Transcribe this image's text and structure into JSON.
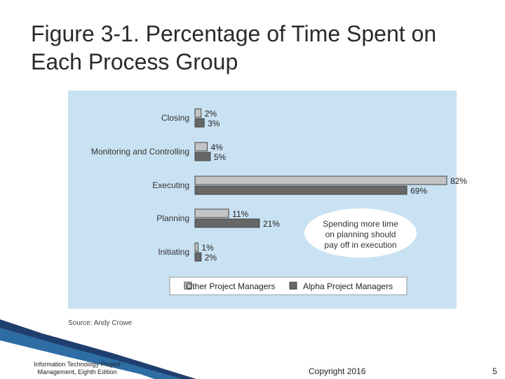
{
  "slide": {
    "title": "Figure 3-1. Percentage of Time Spent on Each Process Group",
    "source": "Source: Andy Crowe",
    "footer_left": "Information Technology Project Management, Eighth Edition",
    "footer_center": "Copyright 2016",
    "page_number": "5"
  },
  "colors": {
    "panel_bg": "#c9e2f3",
    "other_bar": "#c4c4c4",
    "alpha_bar": "#676767",
    "bar_stroke": "#444444",
    "callout_fill": "#ffffff"
  },
  "chart_data": {
    "type": "bar",
    "orientation": "horizontal",
    "categories": [
      "Closing",
      "Monitoring and Controlling",
      "Executing",
      "Planning",
      "Initiating"
    ],
    "series": [
      {
        "name": "Other Project Managers",
        "values": [
          2,
          4,
          82,
          11,
          1
        ],
        "labels": [
          "2%",
          "4%",
          "82%",
          "11%",
          "1%"
        ]
      },
      {
        "name": "Alpha Project Managers",
        "values": [
          3,
          5,
          69,
          21,
          2
        ],
        "labels": [
          "3%",
          "5%",
          "69%",
          "21%",
          "2%"
        ]
      }
    ],
    "xlim": [
      0,
      82
    ],
    "grid": false,
    "legend": "bottom",
    "annotation": "Spending more time on planning should pay off in execution"
  }
}
